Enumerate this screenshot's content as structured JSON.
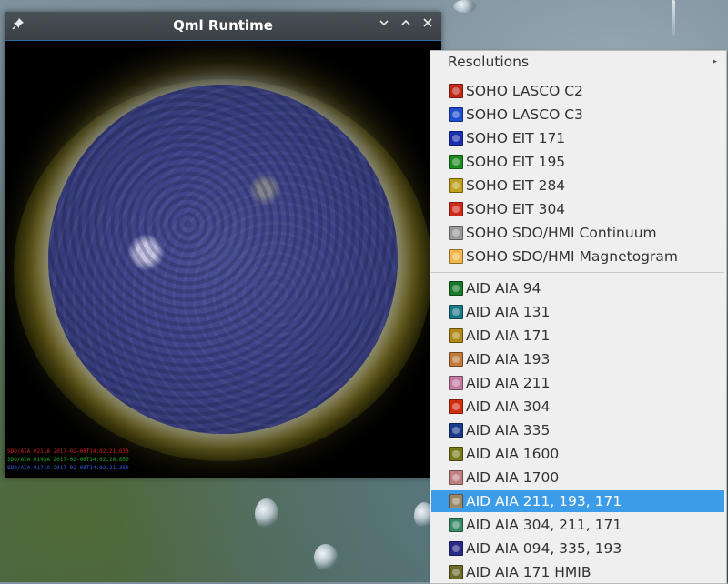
{
  "window": {
    "title": "Qml Runtime",
    "controls": [
      "pin-icon",
      "minimize-icon",
      "maximize-icon",
      "close-icon"
    ]
  },
  "image": {
    "credits": [
      {
        "text": "SDO/AIA 0211A 2017-02-08T14:02:21.630",
        "color": "#d02020"
      },
      {
        "text": "SDO/AIA 0193A 2017-02-08T14:02:28.850",
        "color": "#20b020"
      },
      {
        "text": "SDO/AIA 0171A 2017-02-08T14:02:21.350",
        "color": "#3060e0"
      }
    ]
  },
  "menu": {
    "header": "Resolutions",
    "header_arrow": "▸",
    "group1": [
      {
        "label": "SOHO LASCO C2",
        "color": "#c0281a"
      },
      {
        "label": "SOHO LASCO C3",
        "color": "#1f4fd0"
      },
      {
        "label": "SOHO EIT 171",
        "color": "#1a2fb0"
      },
      {
        "label": "SOHO EIT 195",
        "color": "#1f8a1f"
      },
      {
        "label": "SOHO EIT 284",
        "color": "#c0a020"
      },
      {
        "label": "SOHO EIT 304",
        "color": "#d02a1a"
      },
      {
        "label": "SOHO SDO/HMI Continuum",
        "color": "#9a9a9a"
      },
      {
        "label": "SOHO SDO/HMI Magnetogram",
        "color": "#f2b74a"
      }
    ],
    "group2": [
      {
        "label": "AID AIA 94",
        "color": "#1a7a2a"
      },
      {
        "label": "AID AIA 131",
        "color": "#1a7a8a"
      },
      {
        "label": "AID AIA 171",
        "color": "#b08a1a"
      },
      {
        "label": "AID AIA 193",
        "color": "#c07a3a"
      },
      {
        "label": "AID AIA 211",
        "color": "#c07aa0"
      },
      {
        "label": "AID AIA 304",
        "color": "#d03010"
      },
      {
        "label": "AID AIA 335",
        "color": "#1a3a8a"
      },
      {
        "label": "AID AIA 1600",
        "color": "#7a7a1a"
      },
      {
        "label": "AID AIA 1700",
        "color": "#c08080"
      },
      {
        "label": "AID AIA 211, 193, 171",
        "color": "#9a8a6a",
        "selected": true
      },
      {
        "label": "AID AIA 304, 211, 171",
        "color": "#3a8a6a"
      },
      {
        "label": "AID AIA 094, 335, 193",
        "color": "#2a2a8a"
      },
      {
        "label": "AID AIA 171 HMIB",
        "color": "#6a6a2a"
      }
    ]
  }
}
